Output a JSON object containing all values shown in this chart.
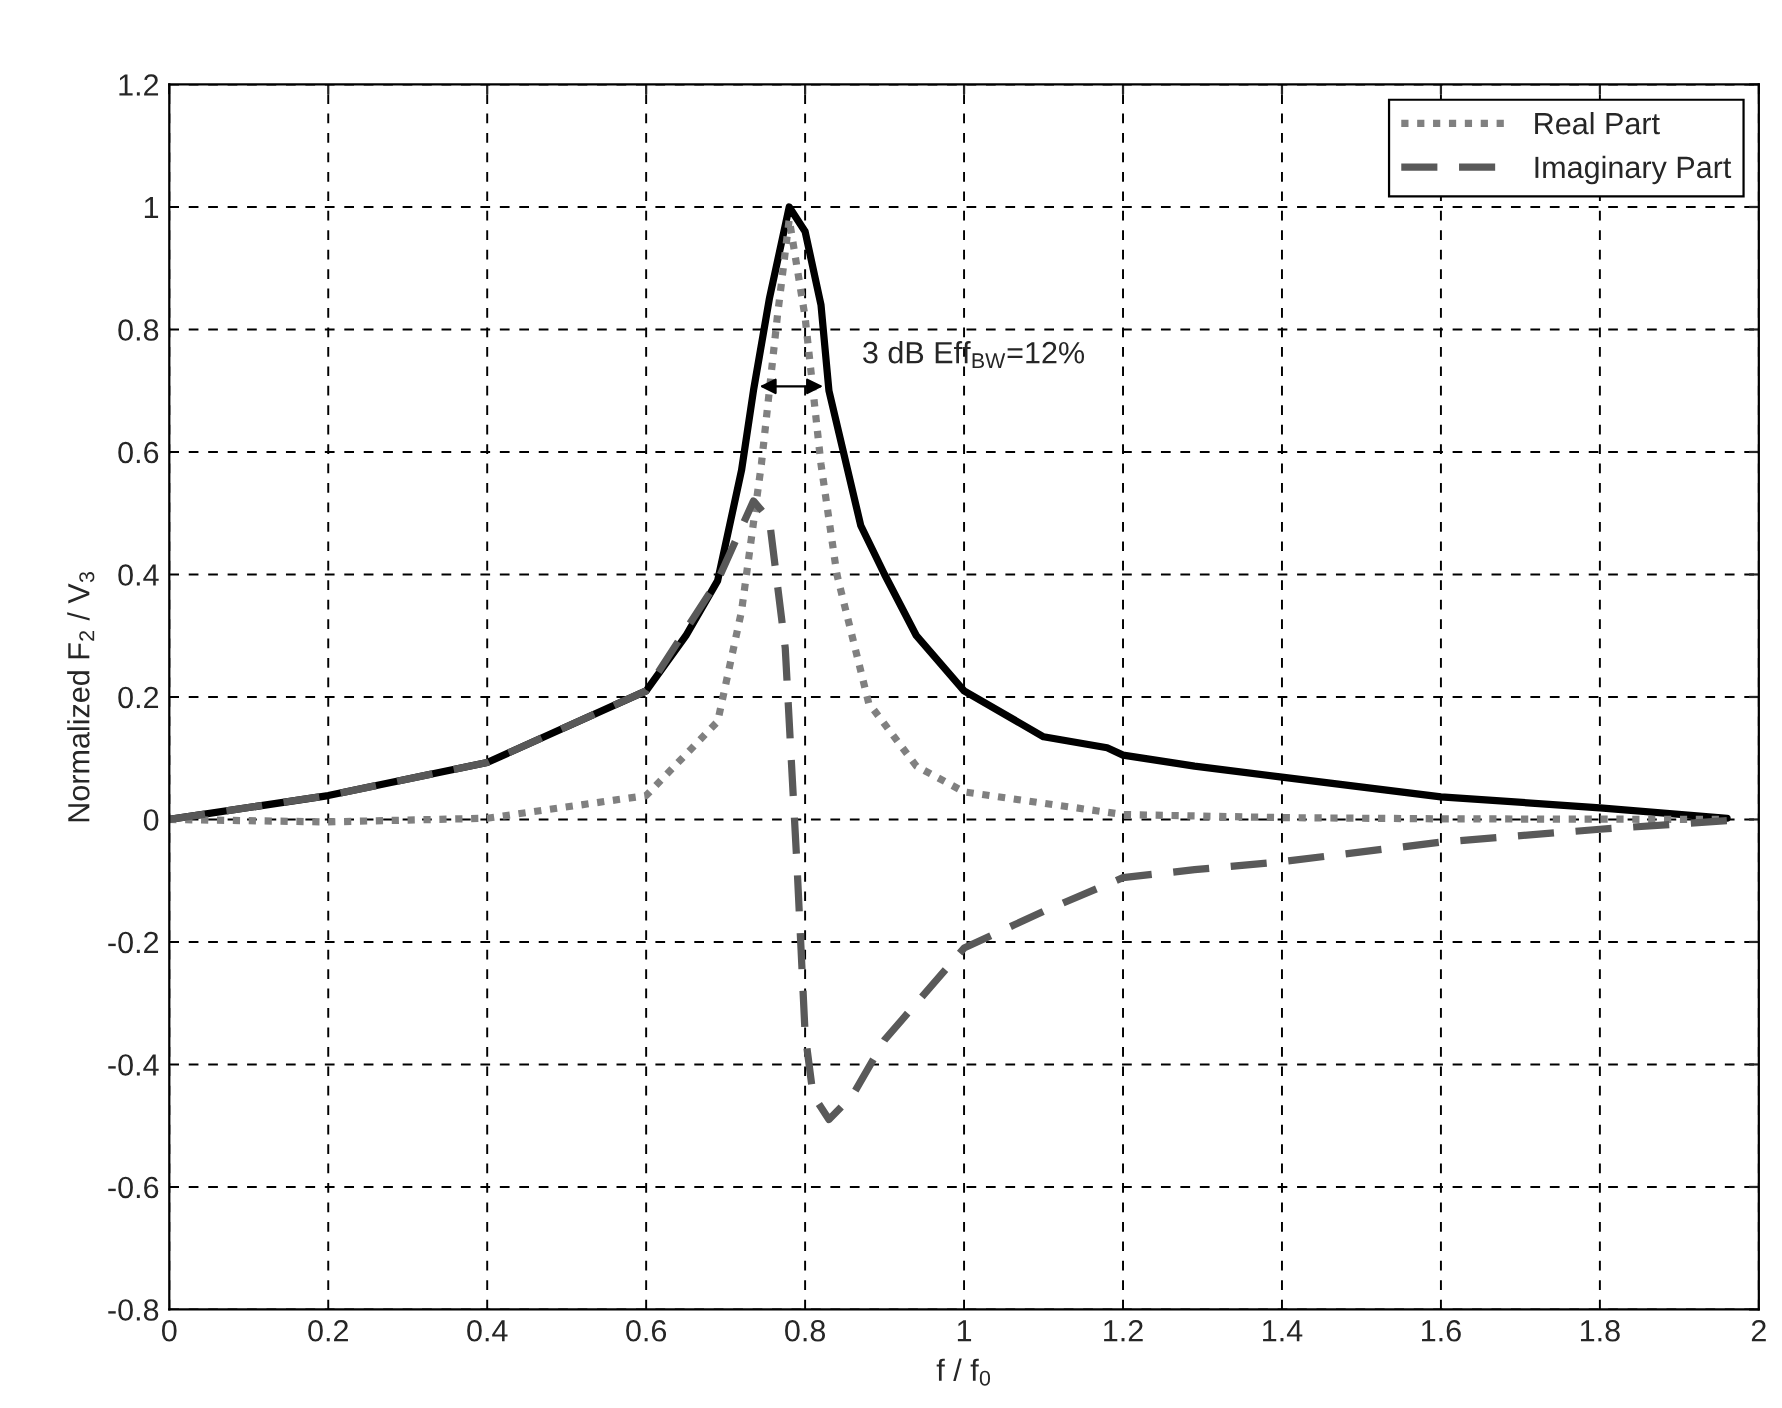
{
  "chart_data": {
    "type": "line",
    "xlabel": "f / f$_{0}$",
    "ylabel": "Normalized F$_{2}$ / V$_{3}$",
    "xlim": [
      0,
      2
    ],
    "xticks": [
      0,
      0.2,
      0.4,
      0.6,
      0.8,
      1,
      1.2,
      1.4,
      1.6,
      1.8,
      2
    ],
    "ylim": [
      -0.8,
      1.2
    ],
    "yticks": [
      -0.8,
      -0.6,
      -0.4,
      -0.2,
      0,
      0.2,
      0.4,
      0.6,
      0.8,
      1,
      1.2
    ],
    "grid": true,
    "legend": "top right",
    "annotations": [
      "3 dB Eff$_{BW}$=12%"
    ],
    "series": [
      {
        "color": "#000000",
        "line_style": "solid",
        "x": [
          0,
          0.2,
          0.4,
          0.6,
          0.65,
          0.69,
          0.72,
          0.735,
          0.755,
          0.78,
          0.8,
          0.82,
          0.83,
          0.87,
          0.9,
          0.94,
          1.0,
          1.1,
          1.18,
          1.2,
          1.29,
          1.4,
          1.6,
          1.8,
          1.96
        ],
        "values": [
          0,
          0.039,
          0.093,
          0.21,
          0.3,
          0.39,
          0.57,
          0.7,
          0.85,
          1.0,
          0.96,
          0.84,
          0.7,
          0.48,
          0.4,
          0.3,
          0.21,
          0.135,
          0.117,
          0.105,
          0.087,
          0.069,
          0.037,
          0.019,
          0.002
        ]
      },
      {
        "name": "Real Part",
        "color": "#808080",
        "line_style": "dotted",
        "x": [
          0,
          0.2,
          0.4,
          0.6,
          0.69,
          0.72,
          0.745,
          0.765,
          0.78,
          0.8,
          0.82,
          0.84,
          0.88,
          0.94,
          1.0,
          1.2,
          1.4,
          1.6,
          1.96
        ],
        "values": [
          0,
          -0.004,
          0.002,
          0.039,
          0.16,
          0.34,
          0.58,
          0.82,
          0.98,
          0.82,
          0.58,
          0.4,
          0.19,
          0.087,
          0.045,
          0.008,
          0.003,
          0.001,
          0
        ]
      },
      {
        "name": "Imaginary Part",
        "color": "#595959",
        "line_style": "dashed",
        "x": [
          0,
          0.2,
          0.4,
          0.6,
          0.69,
          0.735,
          0.755,
          0.775,
          0.79,
          0.8,
          0.81,
          0.83,
          0.86,
          0.9,
          1.0,
          1.1,
          1.2,
          1.29,
          1.4,
          1.6,
          1.8,
          1.96
        ],
        "values": [
          0,
          0.039,
          0.093,
          0.21,
          0.39,
          0.52,
          0.49,
          0.28,
          -0.08,
          -0.35,
          -0.45,
          -0.49,
          -0.45,
          -0.36,
          -0.21,
          -0.15,
          -0.095,
          -0.082,
          -0.069,
          -0.037,
          -0.016,
          -0.002
        ]
      }
    ]
  }
}
